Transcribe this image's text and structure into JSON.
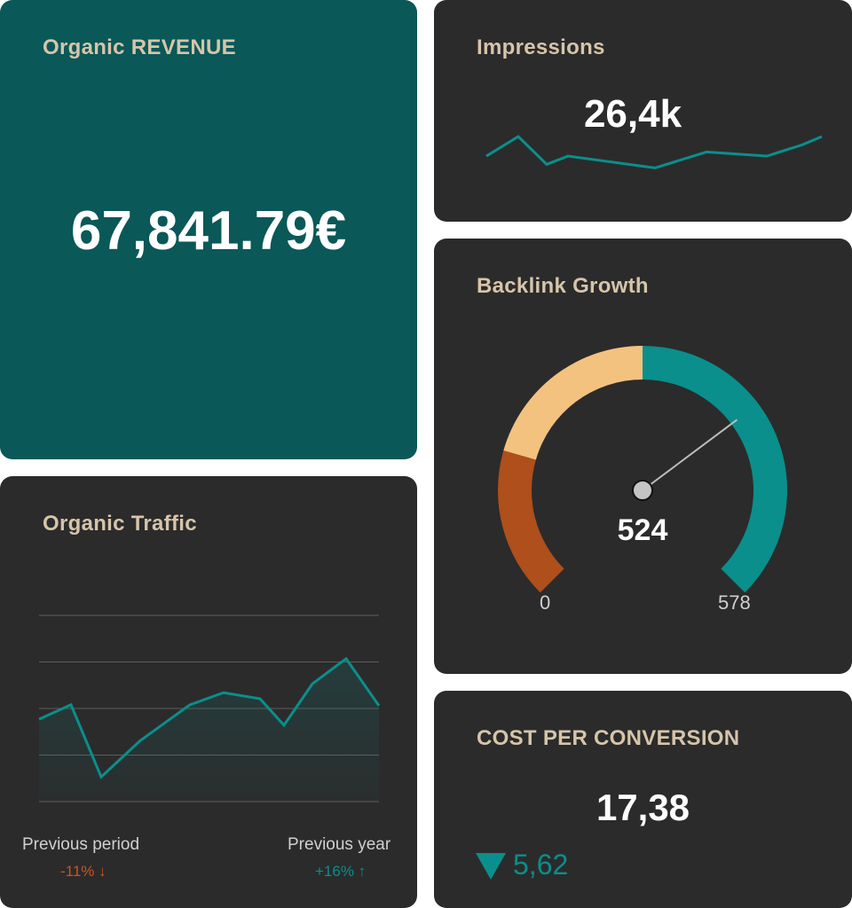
{
  "colors": {
    "card_bg": "#2b2b2b",
    "revenue_bg": "#0a5858",
    "title": "#d6c5aa",
    "teal": "#0a8f8c",
    "orange": "#ae4f1c",
    "peach": "#f4c27f",
    "negative": "#c8561e"
  },
  "revenue": {
    "title": "Organic REVENUE",
    "value": "67,841.79€"
  },
  "impressions": {
    "title": "Impressions",
    "value": "26,4k",
    "sparkline": [
      0.62,
      1.0,
      0.46,
      0.62,
      0.39,
      0.7,
      0.62,
      0.84,
      1.0
    ]
  },
  "backlinks": {
    "title": "Backlink Growth",
    "value": "524",
    "min_label": "0",
    "max_label": "578",
    "bands": [
      {
        "color": "orange",
        "fraction": 0.226
      },
      {
        "color": "peach",
        "fraction": 0.274
      },
      {
        "color": "teal",
        "fraction": 0.5
      }
    ],
    "needle_fraction": 0.697
  },
  "traffic": {
    "title": "Organic Traffic",
    "previous_period_label": "Previous period",
    "previous_period_value": "-11% ↓",
    "previous_year_label": "Previous year",
    "previous_year_value": "+16% ↑"
  },
  "chart_data": {
    "type": "area",
    "title": "Organic Traffic",
    "values": [
      1.77,
      2.08,
      0.53,
      1.31,
      2.08,
      2.34,
      2.21,
      1.64,
      2.53,
      3.07,
      2.06
    ],
    "ylim": [
      0,
      4
    ],
    "grid": true
  },
  "cost": {
    "title": "COST PER CONVERSION",
    "value": "17,38",
    "change": "5,62",
    "change_icon": "triangle-down-icon"
  }
}
